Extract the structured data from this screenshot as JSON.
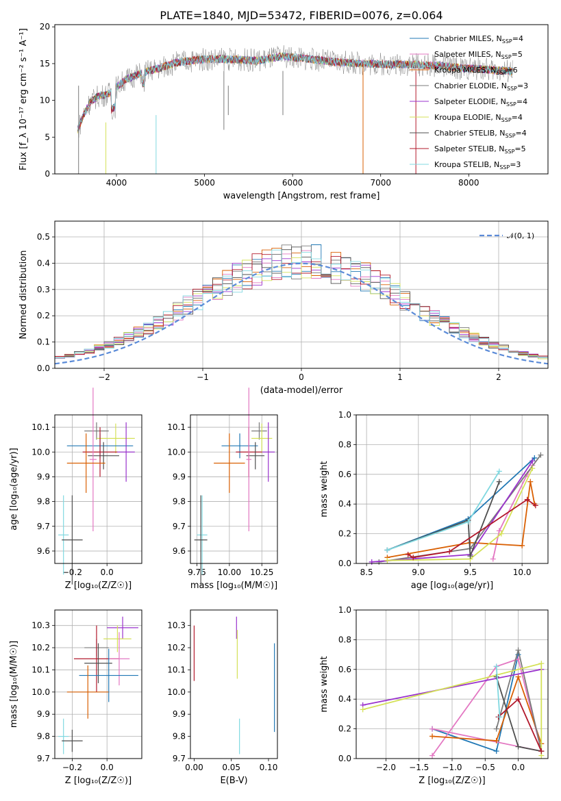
{
  "figure_title": "PLATE=1840, MJD=53472, FIBERID=0076, z=0.064",
  "model_colors": [
    "#1f77b4",
    "#e377c2",
    "#d95f02",
    "#7a7a7a",
    "#9a32cd",
    "#d4e157",
    "#4d4d4d",
    "#b2182b",
    "#80d8e0"
  ],
  "chart_data": [
    {
      "id": "spectrum",
      "type": "line",
      "title": "PLATE=1840, MJD=53472, FIBERID=0076, z=0.064",
      "xlabel": "wavelength [Angstrom, rest frame]",
      "ylabel": "Flux [f_λ 10⁻¹⁷ erg cm⁻² s⁻¹ A⁻¹]",
      "xlim": [
        3300,
        8900
      ],
      "ylim": [
        0,
        20.3
      ],
      "xticks": [
        "4000",
        "5000",
        "6000",
        "7000",
        "8000"
      ],
      "yticks": [
        "0",
        "5",
        "10",
        "15",
        "20"
      ],
      "legend_position": "top-right",
      "continuum": {
        "x": [
          3560,
          3620,
          3700,
          3800,
          3900,
          4000,
          4100,
          4300,
          4500,
          4700,
          5000,
          5300,
          5600,
          5900,
          6200,
          6500,
          6800,
          7100,
          7300,
          7500,
          7700,
          7900,
          8100,
          8300,
          8500
        ],
        "y": [
          6.0,
          7.8,
          9.8,
          10.6,
          10.8,
          11.8,
          12.8,
          13.8,
          14.4,
          15.2,
          15.6,
          15.6,
          15.4,
          16.0,
          15.6,
          15.2,
          15.0,
          14.9,
          14.9,
          14.8,
          14.7,
          14.4,
          14.3,
          14.1,
          14.0
        ]
      },
      "series": [
        {
          "name": "Chabrier MILES, N_SSP=4",
          "label_main": "Chabrier MILES, N",
          "label_sub": "SSP",
          "label_end": "=4"
        },
        {
          "name": "Salpeter MILES, N_SSP=5",
          "label_main": "Salpeter MILES, N",
          "label_sub": "SSP",
          "label_end": "=5"
        },
        {
          "name": "Kroupa MILES, N_SSP=6",
          "label_main": "Kroupa MILES, N",
          "label_sub": "SSP",
          "label_end": "=6"
        },
        {
          "name": "Chabrier ELODIE, N_SSP=3",
          "label_main": "Chabrier ELODIE, N",
          "label_sub": "SSP",
          "label_end": "=3"
        },
        {
          "name": "Salpeter ELODIE, N_SSP=4",
          "label_main": "Salpeter ELODIE, N",
          "label_sub": "SSP",
          "label_end": "=4"
        },
        {
          "name": "Kroupa ELODIE, N_SSP=4",
          "label_main": "Kroupa ELODIE, N",
          "label_sub": "SSP",
          "label_end": "=4"
        },
        {
          "name": "Chabrier STELIB, N_SSP=4",
          "label_main": "Chabrier STELIB, N",
          "label_sub": "SSP",
          "label_end": "=4"
        },
        {
          "name": "Salpeter STELIB, N_SSP=5",
          "label_main": "Salpeter STELIB, N",
          "label_sub": "SSP",
          "label_end": "=5"
        },
        {
          "name": "Kroupa STELIB, N_SSP=3",
          "label_main": "Kroupa STELIB, N",
          "label_sub": "SSP",
          "label_end": "=3"
        }
      ]
    },
    {
      "id": "residuals",
      "type": "line",
      "xlabel": "(data-model)/error",
      "ylabel": "Normed distribution",
      "xlim": [
        -2.5,
        2.5
      ],
      "ylim": [
        0,
        0.56
      ],
      "xticks": [
        "−2",
        "−1",
        "0",
        "1",
        "2"
      ],
      "yticks": [
        "0.0",
        "0.1",
        "0.2",
        "0.3",
        "0.4",
        "0.5"
      ],
      "grid": true,
      "legend": "𝒩(0, 1)",
      "legend_position": "top-right",
      "reference_curve": "standard normal, dashed"
    },
    {
      "id": "age-vs-Z",
      "type": "scatter",
      "xlabel": "Z [log₁₀(Z/Z☉)]",
      "ylabel": "age  [log₁₀(age/yr)]",
      "xlim": [
        -0.3,
        0.2
      ],
      "ylim": [
        9.55,
        10.15
      ],
      "xticks": [
        "−0.2",
        "0.0"
      ],
      "yticks": [
        "9.6",
        "9.7",
        "9.8",
        "9.9",
        "10.0",
        "10.1"
      ],
      "grid": true,
      "points": [
        {
          "x": -0.06,
          "xerr": 0.07,
          "y": 10.085,
          "yerr": 0.035,
          "c": 3
        },
        {
          "x": 0.05,
          "xerr": 0.11,
          "y": 10.055,
          "yerr": 0.06,
          "c": 5
        },
        {
          "x": -0.04,
          "xerr": 0.19,
          "y": 10.025,
          "yerr": 0.05,
          "c": 0
        },
        {
          "x": -0.04,
          "xerr": 0.1,
          "y": 10.0,
          "yerr": 0.1,
          "c": 7
        },
        {
          "x": 0.11,
          "xerr": 0.05,
          "y": 10.0,
          "yerr": 0.12,
          "c": 4
        },
        {
          "x": -0.02,
          "xerr": 0.09,
          "y": 9.985,
          "yerr": 0.055,
          "c": 6
        },
        {
          "x": -0.08,
          "xerr": 0.02,
          "y": 9.97,
          "yerr": 0.29,
          "c": 1
        },
        {
          "x": -0.12,
          "xerr": 0.11,
          "y": 9.955,
          "yerr": 0.12,
          "c": 2
        },
        {
          "x": -0.25,
          "xerr": 0.03,
          "y": 9.665,
          "yerr": 0.16,
          "c": 8
        },
        {
          "x": -0.2,
          "xerr": 0.06,
          "y": 9.645,
          "yerr": 0.18,
          "c": 6
        }
      ]
    },
    {
      "id": "age-vs-mass",
      "type": "scatter",
      "xlabel": "mass [log₁₀(M/M☉)]",
      "xlim": [
        9.7,
        10.37
      ],
      "ylim": [
        9.55,
        10.15
      ],
      "xticks": [
        "9.75",
        "10.00",
        "10.25"
      ],
      "yticks": [
        "9.6",
        "9.7",
        "9.8",
        "9.9",
        "10.0",
        "10.1"
      ],
      "grid": true,
      "points": [
        {
          "x": 10.23,
          "xerr": 0.06,
          "y": 10.085,
          "yerr": 0.035,
          "c": 3
        },
        {
          "x": 10.25,
          "xerr": 0.08,
          "y": 10.055,
          "yerr": 0.06,
          "c": 5
        },
        {
          "x": 10.08,
          "xerr": 0.14,
          "y": 10.025,
          "yerr": 0.05,
          "c": 0
        },
        {
          "x": 10.15,
          "xerr": 0.1,
          "y": 10.0,
          "yerr": 0.1,
          "c": 7
        },
        {
          "x": 10.3,
          "xerr": 0.05,
          "y": 10.0,
          "yerr": 0.12,
          "c": 4
        },
        {
          "x": 10.2,
          "xerr": 0.07,
          "y": 9.985,
          "yerr": 0.055,
          "c": 6
        },
        {
          "x": 10.15,
          "xerr": 0.02,
          "y": 9.97,
          "yerr": 0.29,
          "c": 1
        },
        {
          "x": 10.0,
          "xerr": 0.12,
          "y": 9.955,
          "yerr": 0.12,
          "c": 2
        },
        {
          "x": 9.79,
          "xerr": 0.04,
          "y": 9.665,
          "yerr": 0.16,
          "c": 8
        },
        {
          "x": 9.78,
          "xerr": 0.05,
          "y": 9.645,
          "yerr": 0.18,
          "c": 6
        }
      ]
    },
    {
      "id": "mass-weight-vs-age",
      "type": "line",
      "xlabel": "age  [log₁₀(age/yr)]",
      "ylabel": "mass weight",
      "xlim": [
        8.4,
        10.25
      ],
      "ylim": [
        0,
        1.0
      ],
      "xticks": [
        "8.5",
        "9.0",
        "9.5",
        "10.0"
      ],
      "yticks": [
        "0.0",
        "0.2",
        "0.4",
        "0.6",
        "0.8",
        "1.0"
      ],
      "grid": true,
      "series": [
        {
          "c": 0,
          "x": [
            8.7,
            9.48,
            10.12
          ],
          "y": [
            0.09,
            0.3,
            0.71
          ]
        },
        {
          "c": 1,
          "x": [
            9.72,
            9.78,
            10.05,
            10.1
          ],
          "y": [
            0.03,
            0.22,
            0.6,
            0.66
          ]
        },
        {
          "c": 2,
          "x": [
            8.7,
            9.5,
            10.0,
            10.08,
            10.12
          ],
          "y": [
            0.04,
            0.14,
            0.12,
            0.55,
            0.4
          ]
        },
        {
          "c": 3,
          "x": [
            8.62,
            9.5,
            10.18
          ],
          "y": [
            0.01,
            0.1,
            0.73
          ]
        },
        {
          "c": 4,
          "x": [
            8.55,
            9.5,
            10.1
          ],
          "y": [
            0.01,
            0.06,
            0.69
          ]
        },
        {
          "c": 5,
          "x": [
            8.7,
            9.5,
            9.8,
            10.1
          ],
          "y": [
            0.02,
            0.03,
            0.2,
            0.64
          ]
        },
        {
          "c": 6,
          "x": [
            8.7,
            9.48,
            9.5,
            9.78
          ],
          "y": [
            0.09,
            0.29,
            0.05,
            0.55
          ]
        },
        {
          "c": 7,
          "x": [
            8.9,
            8.95,
            9.3,
            10.05,
            10.13
          ],
          "y": [
            0.06,
            0.04,
            0.08,
            0.43,
            0.39
          ]
        },
        {
          "c": 8,
          "x": [
            8.7,
            9.48,
            9.78
          ],
          "y": [
            0.09,
            0.28,
            0.62
          ]
        }
      ]
    },
    {
      "id": "mass-vs-Z",
      "type": "scatter",
      "xlabel": "Z [log₁₀(Z/Z☉)]",
      "ylabel": "mass [log₁₀(M/M☉)]",
      "xlim": [
        -0.3,
        0.2
      ],
      "ylim": [
        9.7,
        10.37
      ],
      "xticks": [
        "−0.2",
        "0.0"
      ],
      "yticks": [
        "9.7",
        "9.8",
        "9.9",
        "10.0",
        "10.1",
        "10.2",
        "10.3"
      ],
      "grid": true,
      "points": [
        {
          "x": 0.09,
          "xerr": 0.09,
          "y": 10.29,
          "yerr": 0.05,
          "c": 4
        },
        {
          "x": 0.06,
          "xerr": 0.08,
          "y": 10.24,
          "yerr": 0.06,
          "c": 5
        },
        {
          "x": -0.06,
          "xerr": 0.07,
          "y": 10.2,
          "yerr": 0.04,
          "c": 3
        },
        {
          "x": -0.06,
          "xerr": 0.13,
          "y": 10.15,
          "yerr": 0.15,
          "c": 7
        },
        {
          "x": 0.07,
          "xerr": 0.06,
          "y": 10.15,
          "yerr": 0.12,
          "c": 1
        },
        {
          "x": -0.05,
          "xerr": 0.08,
          "y": 10.13,
          "yerr": 0.09,
          "c": 6
        },
        {
          "x": 0.01,
          "xerr": 0.17,
          "y": 10.075,
          "yerr": 0.12,
          "c": 0
        },
        {
          "x": -0.11,
          "xerr": 0.12,
          "y": 10.0,
          "yerr": 0.12,
          "c": 2
        },
        {
          "x": -0.25,
          "xerr": 0.03,
          "y": 9.8,
          "yerr": 0.08,
          "c": 8
        },
        {
          "x": -0.2,
          "xerr": 0.06,
          "y": 9.78,
          "yerr": 0.05,
          "c": 6
        }
      ]
    },
    {
      "id": "mass-vs-EBV",
      "type": "scatter",
      "xlabel": "E(B-V)",
      "xlim": [
        -0.005,
        0.112
      ],
      "ylim": [
        9.7,
        10.37
      ],
      "xticks": [
        "0.00",
        "0.05",
        "0.10"
      ],
      "yticks": [
        "9.7",
        "9.8",
        "9.9",
        "10.0",
        "10.1",
        "10.2",
        "10.3"
      ],
      "grid": false,
      "points": [
        {
          "x": 0.0,
          "y": 10.175,
          "yerr": 0.125,
          "c": 7
        },
        {
          "x": 0.057,
          "y": 10.29,
          "yerr": 0.05,
          "c": 4
        },
        {
          "x": 0.058,
          "y": 10.17,
          "yerr": 0.11,
          "c": 5
        },
        {
          "x": 0.061,
          "y": 9.8,
          "yerr": 0.08,
          "c": 8
        },
        {
          "x": 0.108,
          "y": 10.02,
          "yerr": 0.2,
          "c": 0
        }
      ]
    },
    {
      "id": "mass-weight-vs-Z",
      "type": "line",
      "xlabel": "Z [log₁₀(Z/Z☉)]",
      "ylabel": "mass weight",
      "xlim": [
        -2.45,
        0.45
      ],
      "ylim": [
        0,
        1.0
      ],
      "xticks": [
        "−2.0",
        "−1.5",
        "−1.0",
        "−0.5",
        "0.0"
      ],
      "yticks": [
        "0.0",
        "0.2",
        "0.4",
        "0.6",
        "0.8",
        "1.0"
      ],
      "grid": true,
      "series": [
        {
          "c": 0,
          "x": [
            -1.3,
            -0.33,
            0.0
          ],
          "y": [
            0.2,
            0.05,
            0.7
          ]
        },
        {
          "c": 1,
          "x": [
            -1.3,
            -0.33,
            0.0,
            0.35,
            -1.3
          ],
          "y": [
            0.02,
            0.62,
            0.67,
            0.05,
            0.2
          ]
        },
        {
          "c": 2,
          "x": [
            -1.3,
            -0.33,
            0.0,
            0.35
          ],
          "y": [
            0.15,
            0.12,
            0.55,
            0.1
          ]
        },
        {
          "c": 3,
          "x": [
            -0.33,
            0.0,
            0.35
          ],
          "y": [
            0.2,
            0.73,
            0.05
          ]
        },
        {
          "c": 4,
          "x": [
            -2.35,
            0.35
          ],
          "y": [
            0.36,
            0.6
          ]
        },
        {
          "c": 5,
          "x": [
            -2.35,
            0.35,
            0.35
          ],
          "y": [
            0.33,
            0.64,
            0.02
          ]
        },
        {
          "c": 6,
          "x": [
            -0.33,
            0.0,
            0.35
          ],
          "y": [
            0.55,
            0.08,
            0.05
          ]
        },
        {
          "c": 7,
          "x": [
            -0.3,
            0.0,
            0.35
          ],
          "y": [
            0.28,
            0.4,
            0.05
          ]
        },
        {
          "c": 8,
          "x": [
            -0.33,
            -0.28
          ],
          "y": [
            0.62,
            0.28
          ]
        }
      ]
    }
  ]
}
